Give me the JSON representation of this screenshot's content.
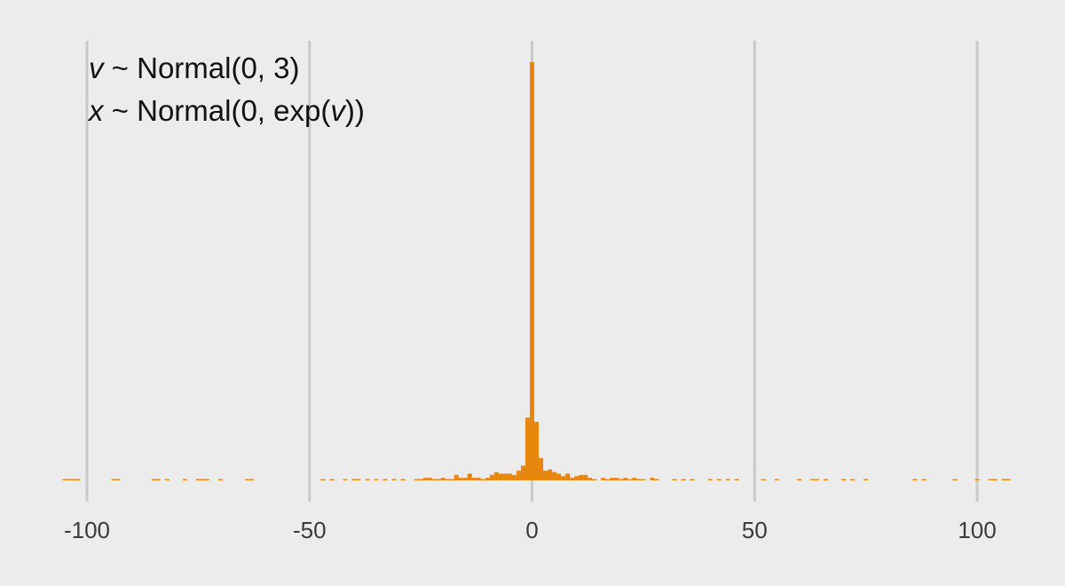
{
  "chart_data": {
    "type": "histogram",
    "title": "",
    "xlabel": "",
    "ylabel": "",
    "xlim": [
      -105,
      108
    ],
    "ylim": [
      0,
      100
    ],
    "x_ticks": [
      -100,
      -50,
      0,
      50,
      100
    ],
    "x_tick_labels": [
      "-100",
      "-50",
      "0",
      "50",
      "100"
    ],
    "grid": {
      "vertical": true,
      "horizontal": false
    },
    "bar_color": "#e8870e",
    "grid_color": "#c9c9c9",
    "background_color": "#ececec",
    "bin_width": 1,
    "annotation": {
      "line1": {
        "var": "v",
        "rest": " ~ Normal(0, 3)"
      },
      "line2": {
        "var_start": "x",
        "mid": " ~ Normal(0, exp(",
        "var_end": "v",
        "end": "))"
      }
    },
    "bins": [
      {
        "x": -105,
        "count": 0.3
      },
      {
        "x": -104,
        "count": 0.3
      },
      {
        "x": -103,
        "count": 0.3
      },
      {
        "x": -102,
        "count": 0.3
      },
      {
        "x": -94,
        "count": 0.3
      },
      {
        "x": -93,
        "count": 0.3
      },
      {
        "x": -85,
        "count": 0.3
      },
      {
        "x": -84,
        "count": 0.3
      },
      {
        "x": -82,
        "count": 0.3
      },
      {
        "x": -78,
        "count": 0.3
      },
      {
        "x": -75,
        "count": 0.3
      },
      {
        "x": -74,
        "count": 0.3
      },
      {
        "x": -73,
        "count": 0.3
      },
      {
        "x": -70,
        "count": 0.3
      },
      {
        "x": -64,
        "count": 0.3
      },
      {
        "x": -63,
        "count": 0.3
      },
      {
        "x": -47,
        "count": 0.3
      },
      {
        "x": -45,
        "count": 0.3
      },
      {
        "x": -42,
        "count": 0.3
      },
      {
        "x": -40,
        "count": 0.3
      },
      {
        "x": -39,
        "count": 0.3
      },
      {
        "x": -37,
        "count": 0.3
      },
      {
        "x": -35,
        "count": 0.3
      },
      {
        "x": -33,
        "count": 0.3
      },
      {
        "x": -31,
        "count": 0.3
      },
      {
        "x": -29,
        "count": 0.3
      },
      {
        "x": -26,
        "count": 0.3
      },
      {
        "x": -25,
        "count": 0.3
      },
      {
        "x": -24,
        "count": 0.6
      },
      {
        "x": -23,
        "count": 0.6
      },
      {
        "x": -22,
        "count": 0.3
      },
      {
        "x": -21,
        "count": 0.3
      },
      {
        "x": -20,
        "count": 0.6
      },
      {
        "x": -19,
        "count": 0.3
      },
      {
        "x": -18,
        "count": 0.3
      },
      {
        "x": -17,
        "count": 1.3
      },
      {
        "x": -16,
        "count": 0.6
      },
      {
        "x": -15,
        "count": 0.6
      },
      {
        "x": -14,
        "count": 1.6
      },
      {
        "x": -13,
        "count": 0.6
      },
      {
        "x": -12,
        "count": 0.6
      },
      {
        "x": -11,
        "count": 0.3
      },
      {
        "x": -10,
        "count": 0.6
      },
      {
        "x": -9,
        "count": 1.3
      },
      {
        "x": -8,
        "count": 1.9
      },
      {
        "x": -7,
        "count": 1.6
      },
      {
        "x": -6,
        "count": 1.6
      },
      {
        "x": -5,
        "count": 1.6
      },
      {
        "x": -4,
        "count": 1.3
      },
      {
        "x": -3,
        "count": 2.3
      },
      {
        "x": -2,
        "count": 3.5
      },
      {
        "x": -1,
        "count": 15.0
      },
      {
        "x": 0,
        "count": 100.0
      },
      {
        "x": 1,
        "count": 14.0
      },
      {
        "x": 2,
        "count": 5.3
      },
      {
        "x": 3,
        "count": 2.3
      },
      {
        "x": 4,
        "count": 2.6
      },
      {
        "x": 5,
        "count": 2.0
      },
      {
        "x": 6,
        "count": 1.6
      },
      {
        "x": 7,
        "count": 1.0
      },
      {
        "x": 8,
        "count": 1.6
      },
      {
        "x": 9,
        "count": 0.6
      },
      {
        "x": 10,
        "count": 1.0
      },
      {
        "x": 11,
        "count": 1.3
      },
      {
        "x": 12,
        "count": 1.3
      },
      {
        "x": 13,
        "count": 0.6
      },
      {
        "x": 14,
        "count": 0.3
      },
      {
        "x": 16,
        "count": 0.6
      },
      {
        "x": 17,
        "count": 0.3
      },
      {
        "x": 18,
        "count": 0.6
      },
      {
        "x": 19,
        "count": 0.6
      },
      {
        "x": 20,
        "count": 0.3
      },
      {
        "x": 21,
        "count": 0.6
      },
      {
        "x": 22,
        "count": 0.3
      },
      {
        "x": 23,
        "count": 0.6
      },
      {
        "x": 24,
        "count": 0.3
      },
      {
        "x": 25,
        "count": 0.3
      },
      {
        "x": 27,
        "count": 0.6
      },
      {
        "x": 28,
        "count": 0.3
      },
      {
        "x": 32,
        "count": 0.3
      },
      {
        "x": 34,
        "count": 0.3
      },
      {
        "x": 36,
        "count": 0.3
      },
      {
        "x": 40,
        "count": 0.3
      },
      {
        "x": 42,
        "count": 0.3
      },
      {
        "x": 44,
        "count": 0.3
      },
      {
        "x": 46,
        "count": 0.3
      },
      {
        "x": 52,
        "count": 0.3
      },
      {
        "x": 55,
        "count": 0.3
      },
      {
        "x": 60,
        "count": 0.3
      },
      {
        "x": 63,
        "count": 0.3
      },
      {
        "x": 64,
        "count": 0.3
      },
      {
        "x": 66,
        "count": 0.3
      },
      {
        "x": 70,
        "count": 0.3
      },
      {
        "x": 72,
        "count": 0.3
      },
      {
        "x": 75,
        "count": 0.3
      },
      {
        "x": 86,
        "count": 0.3
      },
      {
        "x": 88,
        "count": 0.3
      },
      {
        "x": 95,
        "count": 0.3
      },
      {
        "x": 100,
        "count": 0.3
      },
      {
        "x": 103,
        "count": 0.3
      },
      {
        "x": 104,
        "count": 0.3
      },
      {
        "x": 106,
        "count": 0.3
      },
      {
        "x": 107,
        "count": 0.3
      }
    ]
  }
}
